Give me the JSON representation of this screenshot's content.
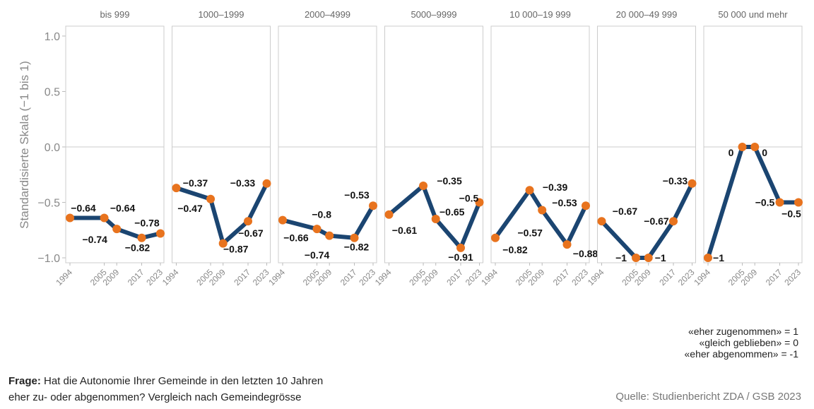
{
  "chart_data": {
    "type": "line",
    "ylabel": "Standardisierte Skala (−1 bis 1)",
    "ylim": [
      -1.1,
      1.1
    ],
    "yticks": [
      "1.0",
      "0.5",
      "0.0",
      "−0.5",
      "−1.0"
    ],
    "ytick_values": [
      1,
      0.5,
      0,
      -0.5,
      -1
    ],
    "x": [
      1994,
      2005,
      2009,
      2017,
      2023
    ],
    "grid": "zero line only",
    "line_color": "#1b4571",
    "point_color": "#e8731e",
    "panels": [
      {
        "title": "bis 999",
        "values": [
          -0.64,
          -0.64,
          -0.74,
          -0.82,
          -0.78
        ],
        "labels": [
          "−0.64",
          "−0.64",
          "−0.74",
          "−0.82",
          "−0.78"
        ]
      },
      {
        "title": "1000–1999",
        "values": [
          -0.37,
          -0.47,
          -0.87,
          -0.67,
          -0.33
        ],
        "labels": [
          "−0.37",
          "−0.47",
          "−0.87",
          "−0.67",
          "−0.33"
        ]
      },
      {
        "title": "2000–4999",
        "values": [
          -0.66,
          -0.74,
          -0.8,
          -0.82,
          -0.53
        ],
        "labels": [
          "−0.66",
          "−0.74",
          "−0.8",
          "−0.82",
          "−0.53"
        ]
      },
      {
        "title": "5000–9999",
        "values": [
          -0.61,
          -0.35,
          -0.65,
          -0.91,
          -0.5
        ],
        "labels": [
          "−0.61",
          "−0.35",
          "−0.65",
          "−0.91",
          "−0.5"
        ]
      },
      {
        "title": "10 000–19 999",
        "values": [
          -0.82,
          -0.39,
          -0.57,
          -0.88,
          -0.53
        ],
        "labels": [
          "−0.82",
          "−0.39",
          "−0.57",
          "−0.88",
          "−0.53"
        ]
      },
      {
        "title": "20 000–49 999",
        "values": [
          -0.67,
          -1,
          -1,
          -0.67,
          -0.33
        ],
        "labels": [
          "−0.67",
          "−1",
          "−1",
          "−0.67",
          "−0.33"
        ]
      },
      {
        "title": "50 000 und mehr",
        "values": [
          -1,
          0,
          0,
          -0.5,
          -0.5
        ],
        "labels": [
          "−1",
          "0",
          "0",
          "−0.5",
          "−0.5"
        ]
      }
    ]
  },
  "legend": [
    "«eher zugenommen» = 1",
    "«gleich geblieben» = 0",
    "«eher abgenommen» = -1"
  ],
  "question": {
    "label": "Frage:",
    "text": " Hat die Autonomie Ihrer Gemeinde in den letzten 10 Jahren",
    "text2": "eher zu- oder abgenommen? Vergleich nach Gemeindegrösse"
  },
  "source": "Quelle: Studienbericht ZDA / GSB 2023"
}
